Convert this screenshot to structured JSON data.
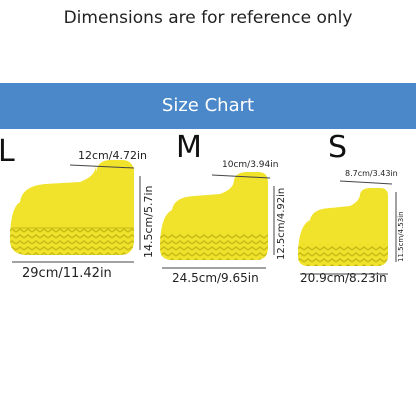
{
  "caption": "Dimensions are for reference only",
  "banner": {
    "title": "Size Chart",
    "color": "#4a88c9"
  },
  "colors": {
    "cover": "#f0e22a",
    "cover_shadow": "#d2c51c",
    "tread": "#d8cc1f"
  },
  "sizes": [
    {
      "letter": "L",
      "top": "12cm/4.72in",
      "height": "14.5cm/5.7in",
      "length": "29cm/11.42in"
    },
    {
      "letter": "M",
      "top": "10cm/3.94in",
      "height": "12.5cm/4.92in",
      "length": "24.5cm/9.65in"
    },
    {
      "letter": "S",
      "top": "8.7cm/3.43in",
      "height": "11.5cm/4.53in",
      "length": "20.9cm/8.23in"
    }
  ]
}
